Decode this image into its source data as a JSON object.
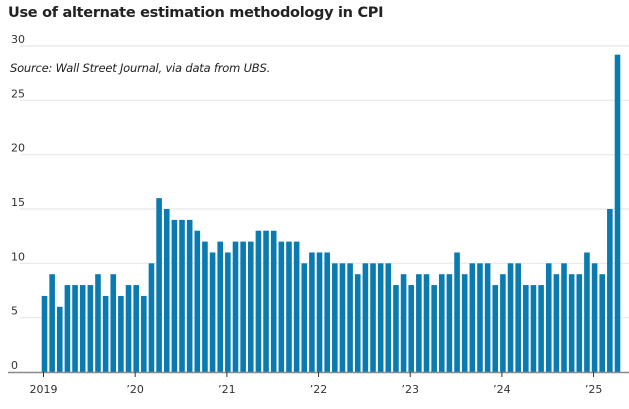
{
  "chart_data": {
    "type": "bar",
    "title": "Use of alternate estimation methodology in CPI",
    "subtitle": "Source: Wall Street Journal, via data from UBS.",
    "xlabel": "",
    "ylabel": "",
    "ylim": [
      0,
      30
    ],
    "yticks": [
      0,
      5,
      10,
      15,
      20,
      25,
      30
    ],
    "ytick_labels": [
      "0",
      "5",
      "10",
      "15",
      "20",
      "25",
      "30"
    ],
    "xtick_labels": [
      "2019",
      "’20",
      "’21",
      "’22",
      "’23",
      "’24",
      "’25"
    ],
    "xtick_months_index": [
      0,
      12,
      24,
      36,
      48,
      60,
      72
    ],
    "grid": true,
    "bar_color": "#0a7bb0",
    "categories": [
      "2019-01",
      "2019-02",
      "2019-03",
      "2019-04",
      "2019-05",
      "2019-06",
      "2019-07",
      "2019-08",
      "2019-09",
      "2019-10",
      "2019-11",
      "2019-12",
      "2020-01",
      "2020-02",
      "2020-03",
      "2020-04",
      "2020-05",
      "2020-06",
      "2020-07",
      "2020-08",
      "2020-09",
      "2020-10",
      "2020-11",
      "2020-12",
      "2021-01",
      "2021-02",
      "2021-03",
      "2021-04",
      "2021-05",
      "2021-06",
      "2021-07",
      "2021-08",
      "2021-09",
      "2021-10",
      "2021-11",
      "2021-12",
      "2022-01",
      "2022-02",
      "2022-03",
      "2022-04",
      "2022-05",
      "2022-06",
      "2022-07",
      "2022-08",
      "2022-09",
      "2022-10",
      "2022-11",
      "2022-12",
      "2023-01",
      "2023-02",
      "2023-03",
      "2023-04",
      "2023-05",
      "2023-06",
      "2023-07",
      "2023-08",
      "2023-09",
      "2023-10",
      "2023-11",
      "2023-12",
      "2024-01",
      "2024-02",
      "2024-03",
      "2024-04",
      "2024-05",
      "2024-06",
      "2024-07",
      "2024-08",
      "2024-09",
      "2024-10",
      "2024-11",
      "2024-12",
      "2025-01",
      "2025-02",
      "2025-03",
      "2025-04"
    ],
    "values": [
      7,
      9,
      6,
      8,
      8,
      8,
      8,
      9,
      7,
      9,
      7,
      8,
      8,
      7,
      10,
      16,
      15,
      14,
      14,
      14,
      13,
      12,
      11,
      12,
      11,
      12,
      12,
      12,
      13,
      13,
      13,
      12,
      12,
      12,
      10,
      11,
      11,
      11,
      10,
      10,
      10,
      9,
      10,
      10,
      10,
      10,
      8,
      9,
      8,
      9,
      9,
      8,
      9,
      9,
      11,
      9,
      10,
      10,
      10,
      8,
      9,
      10,
      10,
      8,
      8,
      8,
      10,
      9,
      10,
      9,
      9,
      11,
      10,
      9,
      15,
      29.2
    ]
  }
}
